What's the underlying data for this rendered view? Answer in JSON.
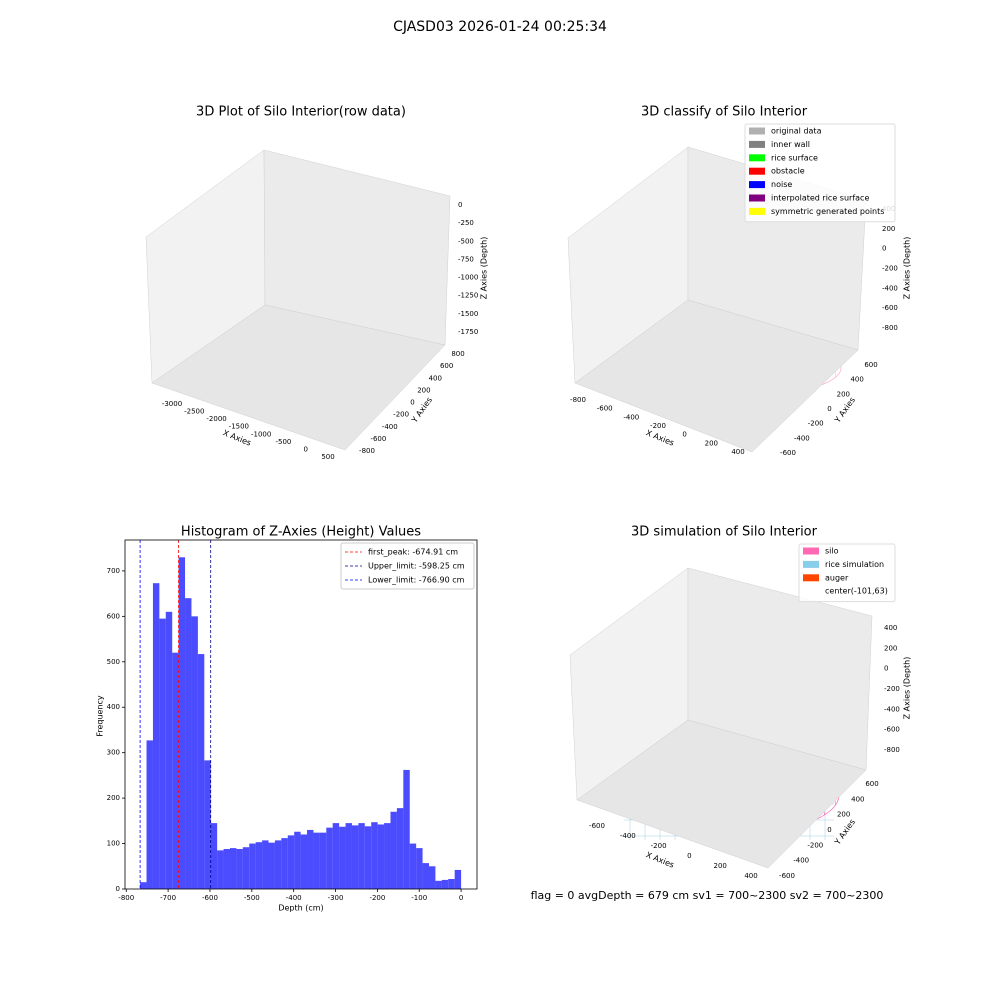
{
  "suptitle": "CJASD03 2026-01-24 00:25:34",
  "footer": "flag = 0     avgDepth = 679 cm  sv1 = 700~2300  sv2 = 700~2300",
  "chart_data": [
    {
      "type": "scatter3d",
      "title": "3D Plot of Silo Interior(row data)",
      "xlabel": "X Axies",
      "ylabel": "Y Axies",
      "zlabel": "Z Axies (Depth)",
      "xticks": [
        -3000,
        -2500,
        -2000,
        -1500,
        -1000,
        -500,
        0,
        500
      ],
      "yticks": [
        -800,
        -600,
        -400,
        -200,
        0,
        200,
        400,
        600,
        800
      ],
      "zticks": [
        0,
        -250,
        -500,
        -750,
        -1000,
        -1250,
        -1500,
        -1750
      ]
    },
    {
      "type": "scatter3d",
      "title": "3D classify of Silo Interior",
      "xlabel": "X Axies",
      "ylabel": "Y Axies",
      "zlabel": "Z Axies (Depth)",
      "xticks": [
        -800,
        -600,
        -400,
        -200,
        0,
        200,
        400
      ],
      "yticks": [
        -600,
        -400,
        -200,
        0,
        200,
        400,
        600
      ],
      "zticks": [
        -800,
        -600,
        -400,
        -200,
        0,
        200,
        400
      ],
      "legend": "upper right",
      "series": [
        {
          "name": "original data",
          "color": "#b0b0b0"
        },
        {
          "name": "inner wall",
          "color": "#808080"
        },
        {
          "name": "rice surface",
          "color": "#00ff00"
        },
        {
          "name": "obstacle",
          "color": "#ff0000"
        },
        {
          "name": "noise",
          "color": "#0000ff"
        },
        {
          "name": "interpolated rice surface",
          "color": "#800080"
        },
        {
          "name": "symmetric generated points",
          "color": "#ffff00"
        }
      ]
    },
    {
      "type": "histogram",
      "title": "Histogram of Z-Axies (Height) Values",
      "xlabel": "Depth (cm)",
      "ylabel": "Frequency",
      "color": "#0000ff",
      "alpha": 0.7,
      "bins": [
        -766.9,
        -751.56,
        -736.22,
        -720.89,
        -705.55,
        -690.21,
        -674.87,
        -659.53,
        -644.2,
        -628.86,
        -613.52,
        -598.18,
        -582.84,
        -567.51,
        -552.17,
        -536.83,
        -521.49,
        -506.15,
        -490.82,
        -475.48,
        -460.14,
        -444.8,
        -429.46,
        -414.13,
        -398.79,
        -383.45,
        -368.11,
        -352.77,
        -337.44,
        -322.1,
        -306.76,
        -291.42,
        -276.08,
        -260.75,
        -245.41,
        -230.07,
        -214.73,
        -199.39,
        -184.06,
        -168.72,
        -153.38,
        -138.04,
        -122.7,
        -107.37,
        -92.03,
        -76.69,
        -61.35,
        -46.01,
        -30.68,
        -15.34,
        0
      ],
      "counts": [
        15,
        327,
        673,
        595,
        610,
        520,
        730,
        640,
        600,
        517,
        283,
        145,
        85,
        88,
        90,
        88,
        92,
        100,
        103,
        107,
        102,
        107,
        112,
        118,
        126,
        120,
        130,
        124,
        124,
        135,
        145,
        137,
        145,
        140,
        145,
        138,
        147,
        142,
        145,
        170,
        178,
        262,
        100,
        90,
        57,
        50,
        18,
        20,
        22,
        42
      ],
      "xlim": [
        -803,
        38
      ],
      "ylim": [
        0,
        768
      ],
      "xticks": [
        -800,
        -700,
        -600,
        -500,
        -400,
        -300,
        -200,
        -100,
        0
      ],
      "yticks": [
        0,
        100,
        200,
        300,
        400,
        500,
        600,
        700
      ],
      "legend": "upper right",
      "lines": [
        {
          "name": "first_peak: -674.91 cm",
          "value": -674.91,
          "color": "#ff0000"
        },
        {
          "name": "Upper_limit: -598.25 cm",
          "value": -598.25,
          "color": "#00008b"
        },
        {
          "name": "Lower_limit: -766.90 cm",
          "value": -766.9,
          "color": "#0000ff"
        }
      ]
    },
    {
      "type": "surface3d",
      "title": "3D simulation of Silo Interior",
      "xlabel": "X Axies",
      "ylabel": "Y Axies",
      "zlabel": "Z Axies (Depth)",
      "xticks": [
        -600,
        -400,
        -200,
        0,
        200,
        400
      ],
      "yticks": [
        -600,
        -400,
        -200,
        0,
        200,
        400,
        600
      ],
      "zticks": [
        -800,
        -600,
        -400,
        -200,
        0,
        200,
        400
      ],
      "legend": "upper right",
      "series": [
        {
          "name": "silo",
          "color": "#ff69b4"
        },
        {
          "name": "rice simulation",
          "color": "#87ceeb"
        },
        {
          "name": "auger",
          "color": "#ff4500"
        },
        {
          "name": "center(-101,63)"
        }
      ]
    }
  ]
}
